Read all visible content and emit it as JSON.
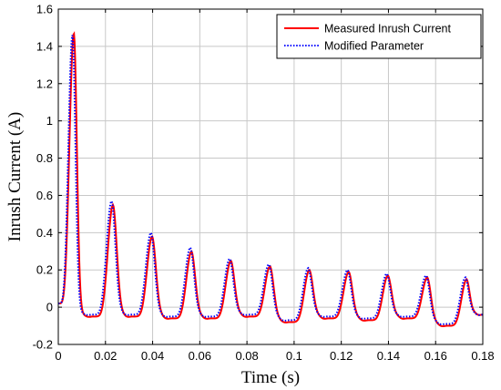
{
  "chart_data": {
    "type": "line",
    "xlabel": "Time (s)",
    "ylabel": "Inrush Current (A)",
    "xlim": [
      0,
      0.18
    ],
    "ylim": [
      -0.2,
      1.6
    ],
    "xticks": [
      "0",
      "0.02",
      "0.04",
      "0.06",
      "0.08",
      "0.1",
      "0.12",
      "0.14",
      "0.16",
      "0.18"
    ],
    "yticks": [
      "-0.2",
      "0",
      "0.2",
      "0.4",
      "0.6",
      "0.8",
      "1",
      "1.2",
      "1.4",
      "1.6"
    ],
    "grid": true,
    "legend_position": "top-right",
    "series": [
      {
        "name": "Measured Inrush Current",
        "color": "#ff0000",
        "style": "solid",
        "peaks": [
          {
            "t": 0.0066,
            "peak": 1.47
          },
          {
            "t": 0.0232,
            "peak": 0.55
          },
          {
            "t": 0.0398,
            "peak": 0.38
          },
          {
            "t": 0.0565,
            "peak": 0.3
          },
          {
            "t": 0.0732,
            "peak": 0.25
          },
          {
            "t": 0.0898,
            "peak": 0.22
          },
          {
            "t": 0.1065,
            "peak": 0.2
          },
          {
            "t": 0.1232,
            "peak": 0.19
          },
          {
            "t": 0.1398,
            "peak": 0.17
          },
          {
            "t": 0.1565,
            "peak": 0.16
          },
          {
            "t": 0.1732,
            "peak": 0.15
          }
        ],
        "troughs": [
          {
            "t": 0.0,
            "v": 0.02
          },
          {
            "t": 0.0148,
            "v": -0.05
          },
          {
            "t": 0.0315,
            "v": -0.05
          },
          {
            "t": 0.0482,
            "v": -0.06
          },
          {
            "t": 0.0648,
            "v": -0.06
          },
          {
            "t": 0.0815,
            "v": -0.05
          },
          {
            "t": 0.0982,
            "v": -0.08
          },
          {
            "t": 0.1148,
            "v": -0.06
          },
          {
            "t": 0.1315,
            "v": -0.07
          },
          {
            "t": 0.1482,
            "v": -0.06
          },
          {
            "t": 0.1648,
            "v": -0.1
          },
          {
            "t": 0.18,
            "v": -0.04
          }
        ]
      },
      {
        "name": "Modified Parameter",
        "color": "#0000ff",
        "style": "dotted",
        "peaks": [
          {
            "t": 0.006,
            "peak": 1.46
          },
          {
            "t": 0.0226,
            "peak": 0.57
          },
          {
            "t": 0.0393,
            "peak": 0.4
          },
          {
            "t": 0.056,
            "peak": 0.32
          },
          {
            "t": 0.0727,
            "peak": 0.26
          },
          {
            "t": 0.0893,
            "peak": 0.23
          },
          {
            "t": 0.106,
            "peak": 0.21
          },
          {
            "t": 0.1227,
            "peak": 0.2
          },
          {
            "t": 0.1393,
            "peak": 0.18
          },
          {
            "t": 0.156,
            "peak": 0.17
          },
          {
            "t": 0.1727,
            "peak": 0.16
          }
        ],
        "troughs": [
          {
            "t": 0.0,
            "v": 0.02
          },
          {
            "t": 0.0143,
            "v": -0.04
          },
          {
            "t": 0.031,
            "v": -0.04
          },
          {
            "t": 0.0477,
            "v": -0.05
          },
          {
            "t": 0.0643,
            "v": -0.05
          },
          {
            "t": 0.081,
            "v": -0.04
          },
          {
            "t": 0.0977,
            "v": -0.07
          },
          {
            "t": 0.1143,
            "v": -0.05
          },
          {
            "t": 0.131,
            "v": -0.06
          },
          {
            "t": 0.1477,
            "v": -0.05
          },
          {
            "t": 0.1643,
            "v": -0.09
          },
          {
            "t": 0.18,
            "v": -0.04
          }
        ]
      }
    ]
  }
}
